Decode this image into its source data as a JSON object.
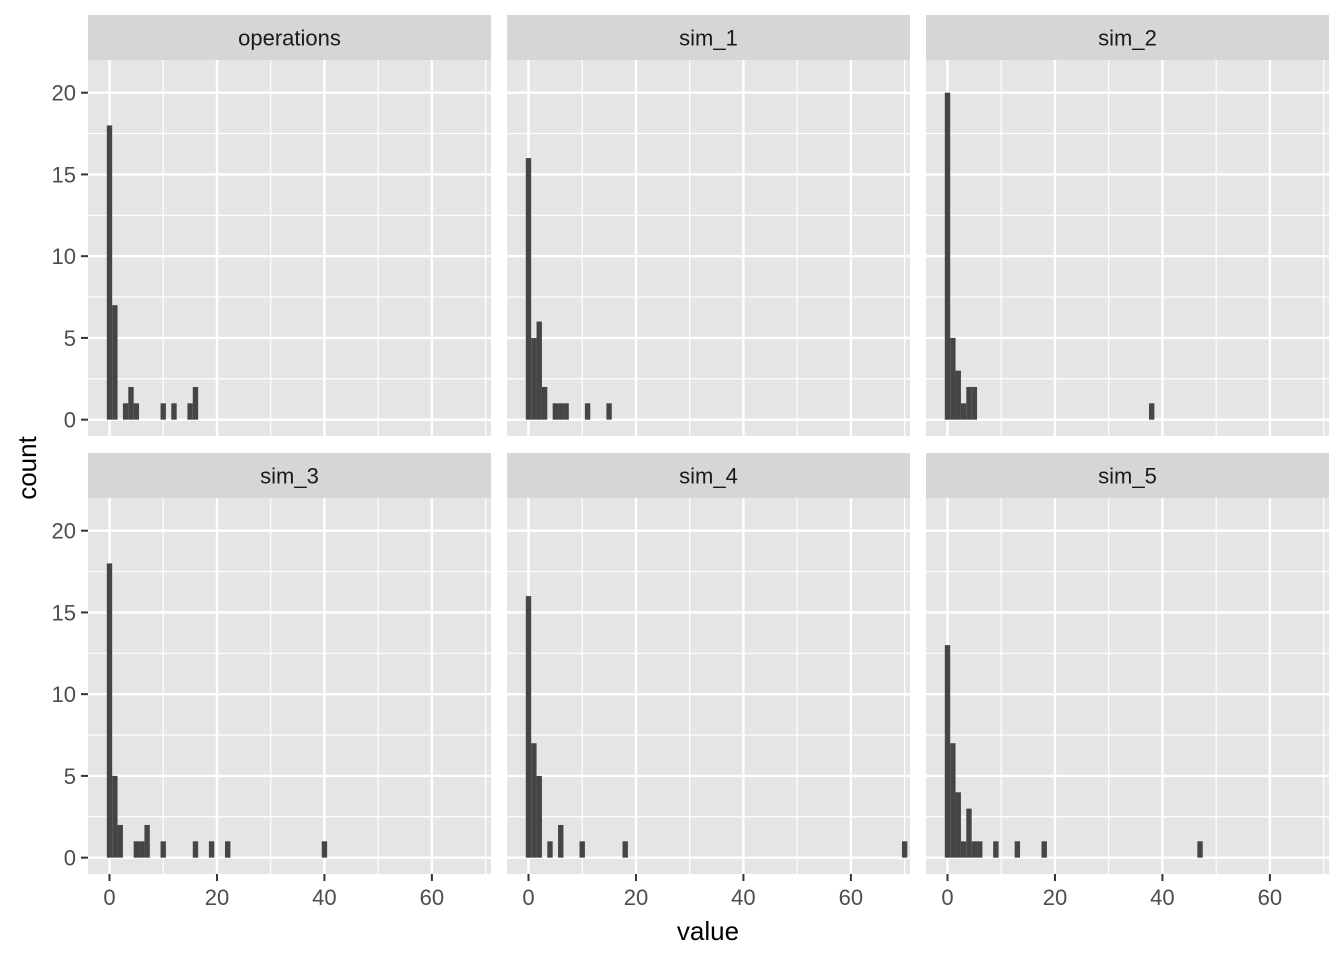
{
  "chart_data": {
    "type": "bar",
    "subtype": "faceted-histogram",
    "xlabel": "value",
    "ylabel": "count",
    "xlim": [
      -4,
      71
    ],
    "ylim": [
      -1,
      22
    ],
    "x_ticks": [
      0,
      20,
      40,
      60
    ],
    "y_ticks": [
      0,
      5,
      10,
      15,
      20
    ],
    "x_tick_labels": [
      "0",
      "20",
      "40",
      "60"
    ],
    "y_tick_labels": [
      "0",
      "5",
      "10",
      "15",
      "20"
    ],
    "grid": true,
    "legend": "none",
    "colors": {
      "bar": "#454545",
      "panel_background": "#e5e5e5",
      "strip_background": "#d6d6d6",
      "grid": "#ffffff",
      "text": "#4d4d4d"
    },
    "bin_width": 1,
    "facets": [
      {
        "name": "operations",
        "bins": [
          [
            0,
            18
          ],
          [
            1,
            7
          ],
          [
            3,
            1
          ],
          [
            4,
            2
          ],
          [
            5,
            1
          ],
          [
            10,
            1
          ],
          [
            12,
            1
          ],
          [
            15,
            1
          ],
          [
            16,
            2
          ]
        ]
      },
      {
        "name": "sim_1",
        "bins": [
          [
            0,
            16
          ],
          [
            1,
            5
          ],
          [
            2,
            6
          ],
          [
            3,
            2
          ],
          [
            5,
            1
          ],
          [
            6,
            1
          ],
          [
            7,
            1
          ],
          [
            11,
            1
          ],
          [
            15,
            1
          ]
        ]
      },
      {
        "name": "sim_2",
        "bins": [
          [
            0,
            20
          ],
          [
            1,
            5
          ],
          [
            2,
            3
          ],
          [
            3,
            1
          ],
          [
            4,
            2
          ],
          [
            5,
            2
          ],
          [
            38,
            1
          ]
        ]
      },
      {
        "name": "sim_3",
        "bins": [
          [
            0,
            18
          ],
          [
            1,
            5
          ],
          [
            2,
            2
          ],
          [
            5,
            1
          ],
          [
            6,
            1
          ],
          [
            7,
            2
          ],
          [
            10,
            1
          ],
          [
            16,
            1
          ],
          [
            19,
            1
          ],
          [
            22,
            1
          ],
          [
            40,
            1
          ]
        ]
      },
      {
        "name": "sim_4",
        "bins": [
          [
            0,
            16
          ],
          [
            1,
            7
          ],
          [
            2,
            5
          ],
          [
            4,
            1
          ],
          [
            6,
            2
          ],
          [
            10,
            1
          ],
          [
            18,
            1
          ],
          [
            70,
            1
          ]
        ]
      },
      {
        "name": "sim_5",
        "bins": [
          [
            0,
            13
          ],
          [
            1,
            7
          ],
          [
            2,
            4
          ],
          [
            3,
            1
          ],
          [
            4,
            3
          ],
          [
            5,
            1
          ],
          [
            6,
            1
          ],
          [
            9,
            1
          ],
          [
            13,
            1
          ],
          [
            18,
            1
          ],
          [
            47,
            1
          ]
        ]
      }
    ]
  }
}
